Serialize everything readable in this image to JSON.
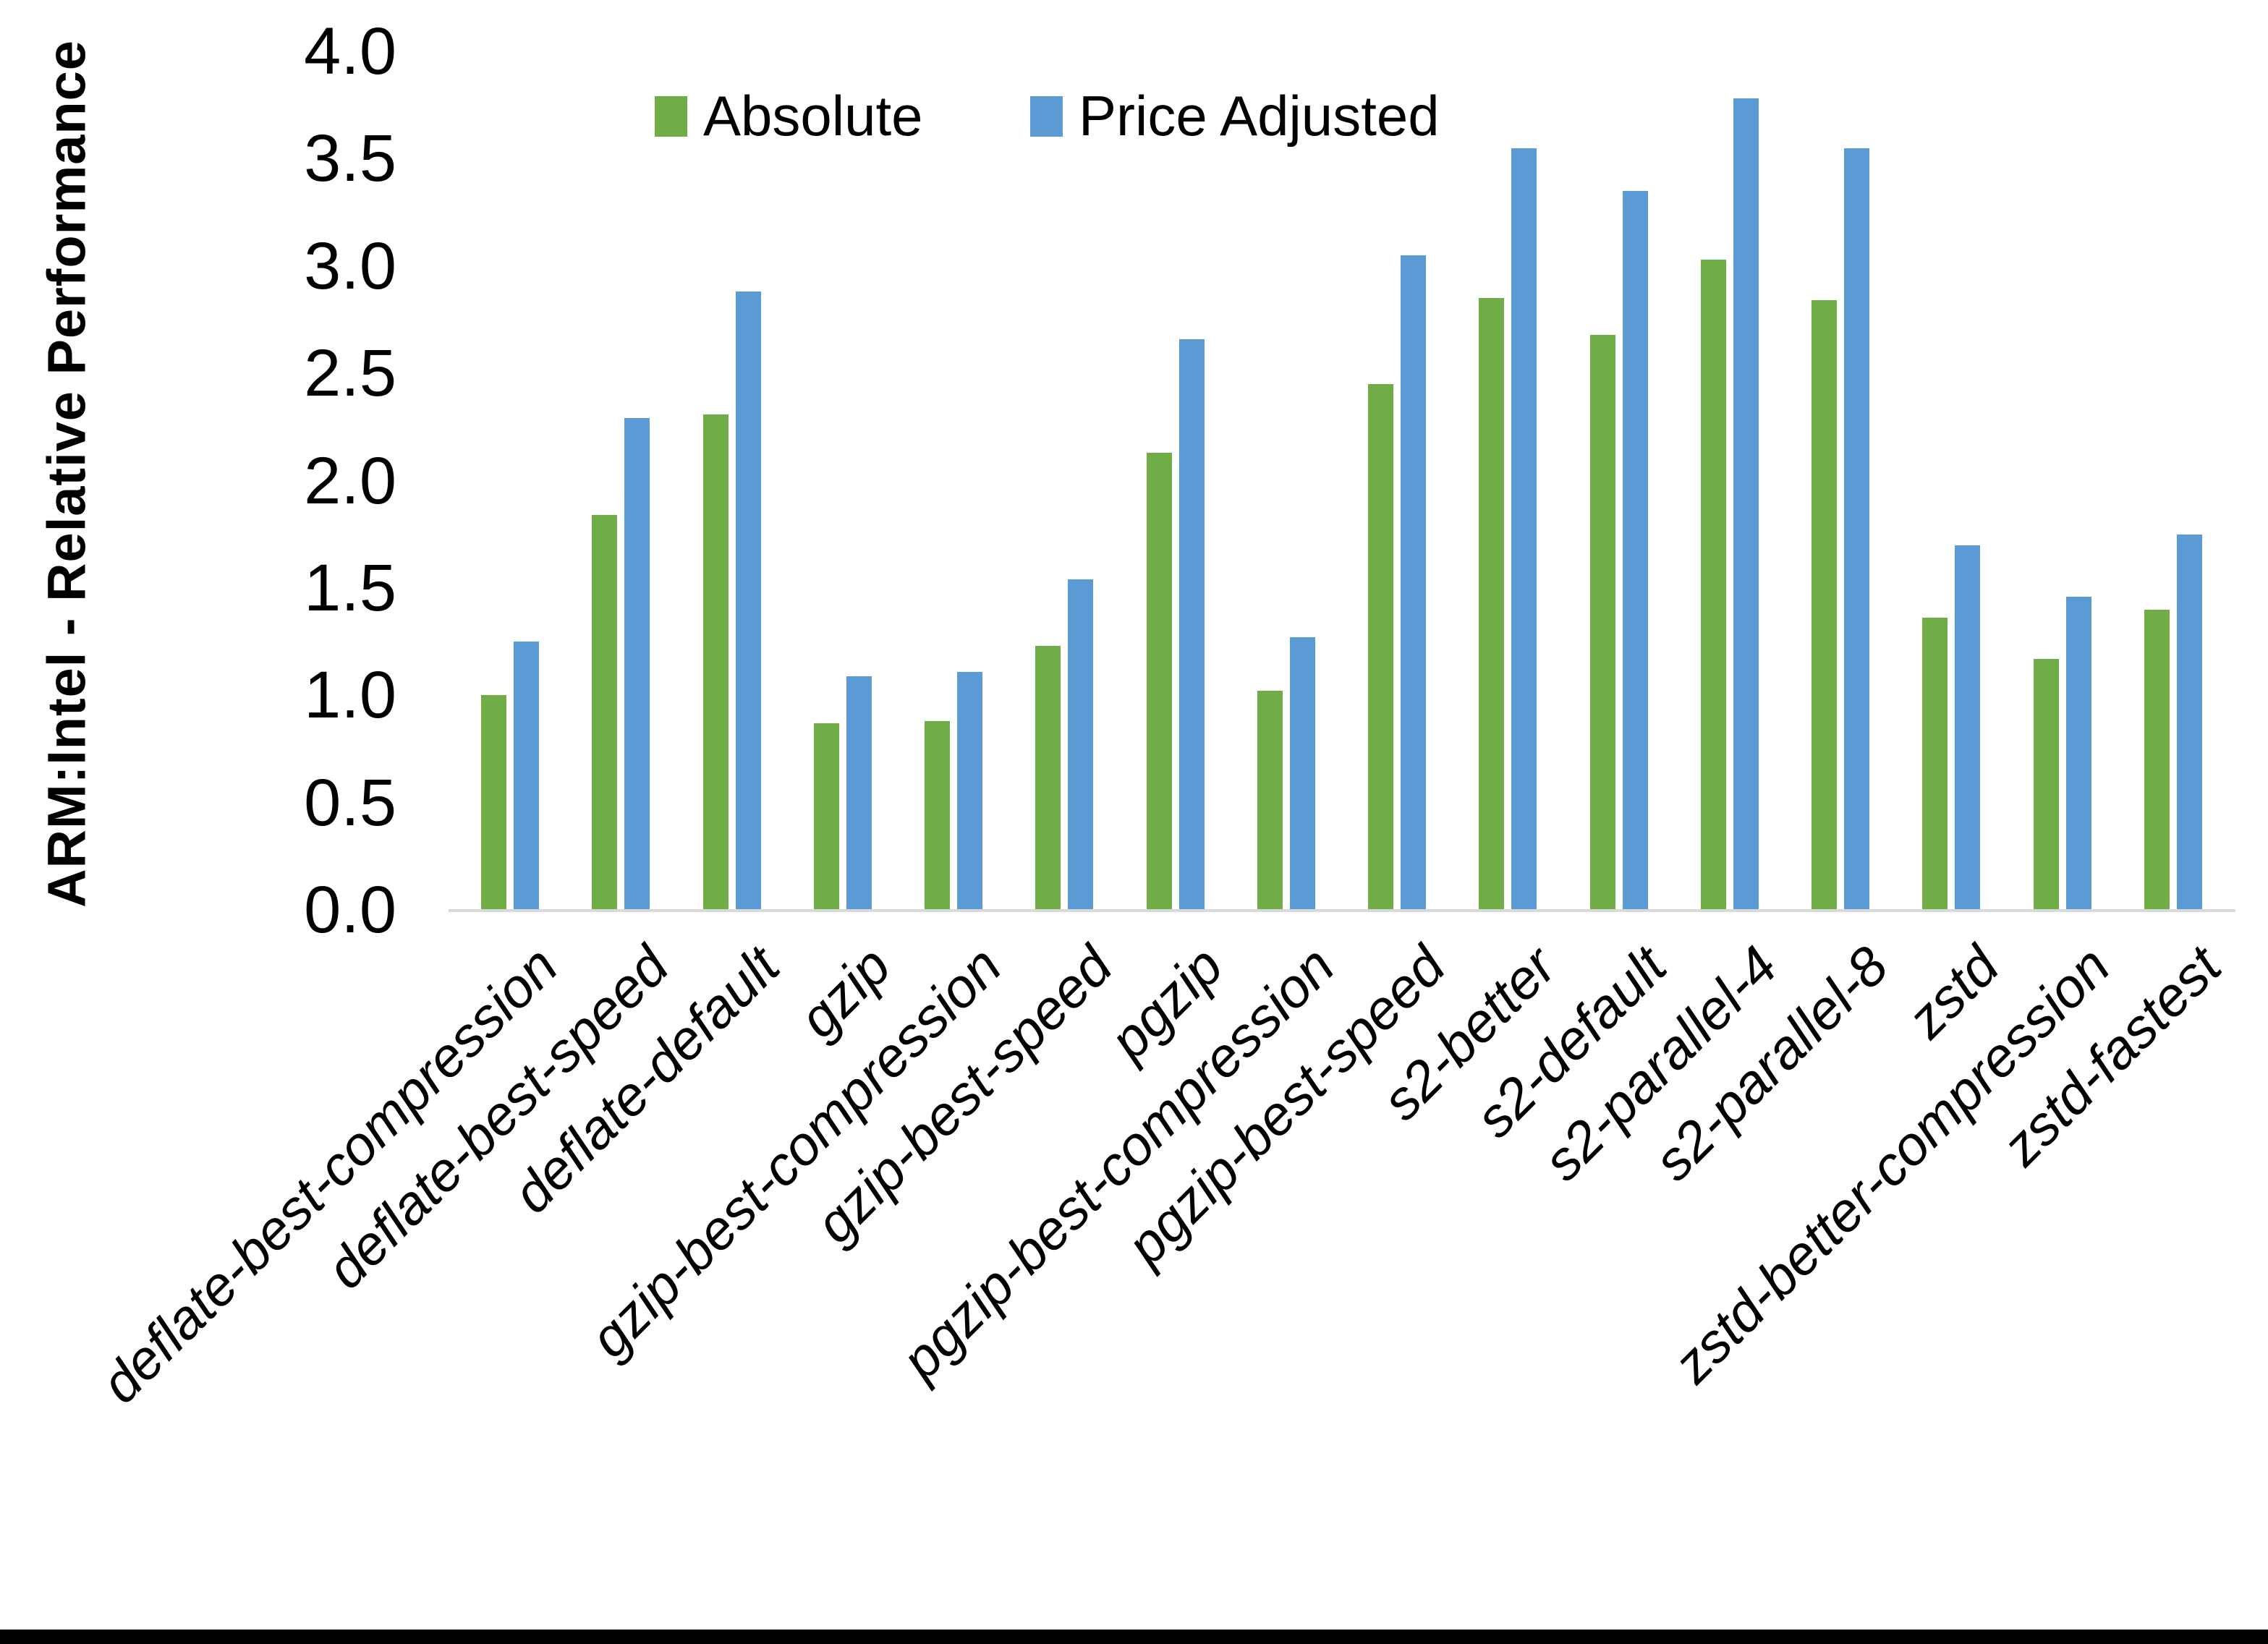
{
  "chart_data": {
    "type": "bar",
    "title": "",
    "xlabel": "",
    "ylabel": "ARM:Intel - Relative Performance",
    "ylim": [
      0.0,
      4.0
    ],
    "ytick_step": 0.5,
    "ytick_labels": [
      "0.0",
      "0.5",
      "1.0",
      "1.5",
      "2.0",
      "2.5",
      "3.0",
      "3.5",
      "4.0"
    ],
    "grid": false,
    "legend_position": "top-center",
    "axis_line_color": "#d9d9d9",
    "categories": [
      "deflate-best-compression",
      "deflate-best-speed",
      "deflate-default",
      "gzip",
      "gzip-best-compression",
      "gzip-best-speed",
      "pgzip",
      "pgzip-best-compression",
      "pgzip-best-speed",
      "s2-better",
      "s2-default",
      "s2-parallel-4",
      "s2-parallel-8",
      "zstd",
      "zstd-better-compression",
      "zstd-fastest"
    ],
    "series": [
      {
        "name": "Absolute",
        "color": "#70AD47",
        "values": [
          1.0,
          1.84,
          2.31,
          0.87,
          0.88,
          1.23,
          2.13,
          1.02,
          2.45,
          2.85,
          2.68,
          3.03,
          2.84,
          1.36,
          1.17,
          1.4
        ]
      },
      {
        "name": "Price Adjusted",
        "color": "#5B9BD5",
        "values": [
          1.25,
          2.29,
          2.88,
          1.09,
          1.11,
          1.54,
          2.66,
          1.27,
          3.05,
          3.55,
          3.35,
          3.78,
          3.55,
          1.7,
          1.46,
          1.75
        ]
      }
    ]
  }
}
